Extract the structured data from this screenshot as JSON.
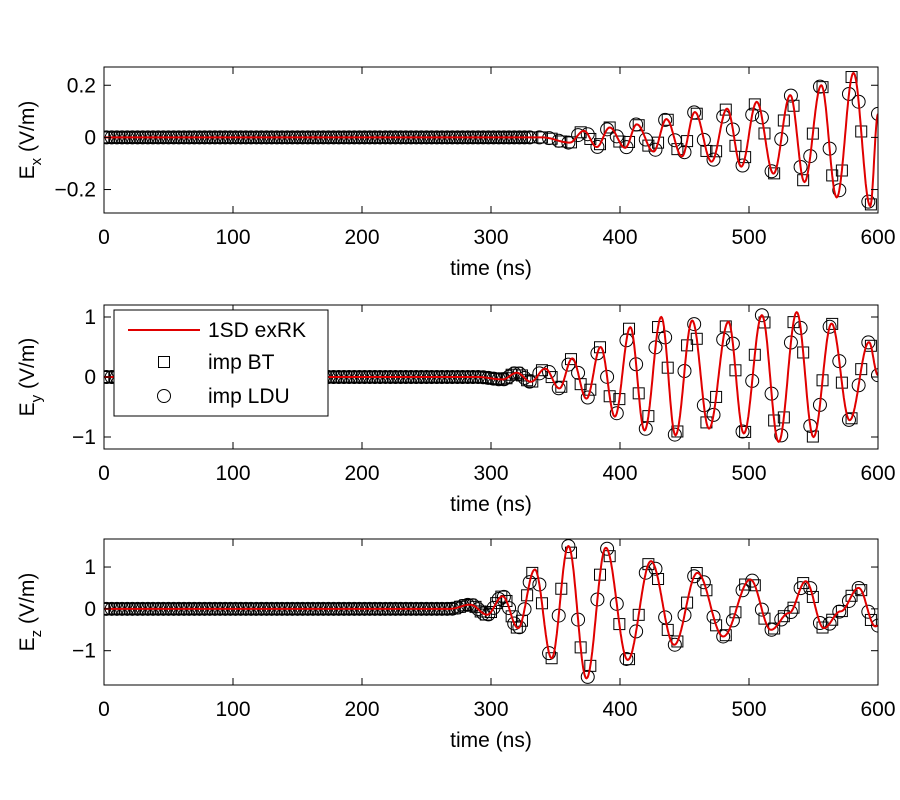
{
  "chart_data": [
    {
      "type": "line",
      "xlabel": "time (ns)",
      "ylabel": {
        "main": "E",
        "sub": "x",
        "unit": " (V/m)"
      },
      "xlim": [
        0,
        600
      ],
      "ylim": [
        -0.29,
        0.27
      ],
      "xticks": [
        0,
        100,
        200,
        300,
        400,
        500,
        600
      ],
      "yticks": [
        -0.2,
        0,
        0.2
      ],
      "ytick_labels": [
        "−0.2",
        "0",
        "0.2"
      ],
      "grid": false,
      "series_points": [
        [
          0,
          0
        ],
        [
          340,
          0
        ],
        [
          361,
          -0.02
        ],
        [
          372,
          0.025
        ],
        [
          382,
          -0.037
        ],
        [
          392,
          0.038
        ],
        [
          404,
          -0.04
        ],
        [
          413,
          0.05
        ],
        [
          426,
          -0.054
        ],
        [
          436,
          0.07
        ],
        [
          448,
          -0.073
        ],
        [
          458,
          0.097
        ],
        [
          471,
          -0.093
        ],
        [
          483,
          0.11
        ],
        [
          494,
          -0.112
        ],
        [
          506,
          0.136
        ],
        [
          519,
          -0.139
        ],
        [
          532,
          0.162
        ],
        [
          543,
          -0.171
        ],
        [
          556,
          0.2
        ],
        [
          568,
          -0.23
        ],
        [
          581,
          0.247
        ],
        [
          594,
          -0.263
        ],
        [
          600,
          0.09
        ]
      ]
    },
    {
      "type": "line",
      "xlabel": "time (ns)",
      "ylabel": {
        "main": "E",
        "sub": "y",
        "unit": " (V/m)"
      },
      "xlim": [
        0,
        600
      ],
      "ylim": [
        -1.2,
        1.2
      ],
      "xticks": [
        0,
        100,
        200,
        300,
        400,
        500,
        600
      ],
      "yticks": [
        -1,
        0,
        1
      ],
      "ytick_labels": [
        "−1",
        "0",
        "1"
      ],
      "grid": false,
      "series_points": [
        [
          0,
          0
        ],
        [
          290,
          0
        ],
        [
          309,
          -0.04
        ],
        [
          320,
          0.07
        ],
        [
          331,
          -0.08
        ],
        [
          342,
          0.14
        ],
        [
          353,
          -0.19
        ],
        [
          363,
          0.31
        ],
        [
          374,
          -0.36
        ],
        [
          385,
          0.5
        ],
        [
          396,
          -0.66
        ],
        [
          408,
          0.83
        ],
        [
          419,
          -0.89
        ],
        [
          432,
          1.0
        ],
        [
          443,
          -0.97
        ],
        [
          456,
          0.94
        ],
        [
          469,
          -0.86
        ],
        [
          484,
          0.92
        ],
        [
          496,
          -0.94
        ],
        [
          510,
          1.03
        ],
        [
          523,
          -1.08
        ],
        [
          537,
          1.08
        ],
        [
          550,
          -1.0
        ],
        [
          564,
          0.89
        ],
        [
          578,
          -0.72
        ],
        [
          593,
          0.58
        ],
        [
          600,
          0.03
        ]
      ]
    },
    {
      "type": "line",
      "xlabel": "time (ns)",
      "ylabel": {
        "main": "E",
        "sub": "z",
        "unit": " (V/m)"
      },
      "xlim": [
        0,
        600
      ],
      "ylim": [
        -1.82,
        1.67
      ],
      "xticks": [
        0,
        100,
        200,
        300,
        400,
        500,
        600
      ],
      "yticks": [
        -1,
        0,
        1
      ],
      "ytick_labels": [
        "−1",
        "0",
        "1"
      ],
      "grid": false,
      "series_points": [
        [
          0,
          0
        ],
        [
          268,
          0
        ],
        [
          284,
          0.1
        ],
        [
          297,
          -0.14
        ],
        [
          309,
          0.3
        ],
        [
          321,
          -0.46
        ],
        [
          334,
          0.94
        ],
        [
          347,
          -1.18
        ],
        [
          360,
          1.5
        ],
        [
          374,
          -1.66
        ],
        [
          389,
          1.46
        ],
        [
          406,
          -1.22
        ],
        [
          424,
          1.14
        ],
        [
          442,
          -0.86
        ],
        [
          460,
          0.86
        ],
        [
          480,
          -0.66
        ],
        [
          501,
          0.7
        ],
        [
          517,
          -0.5
        ],
        [
          531,
          -0.1
        ],
        [
          544,
          0.66
        ],
        [
          558,
          -0.46
        ],
        [
          571,
          -0.06
        ],
        [
          585,
          0.5
        ],
        [
          598,
          -0.42
        ],
        [
          600,
          -0.4
        ]
      ]
    }
  ],
  "legend": {
    "placement": "overlapping bottom-left of middle panel",
    "entries": [
      {
        "label": "1SD exRK",
        "marker": "line",
        "color": "#e00000"
      },
      {
        "label": "imp BT",
        "marker": "square",
        "color": "#000000"
      },
      {
        "label": "imp LDU",
        "marker": "circle",
        "color": "#000000"
      }
    ]
  },
  "colors": {
    "line": "#e00000",
    "markers": "#000000",
    "axes": "#000000"
  }
}
